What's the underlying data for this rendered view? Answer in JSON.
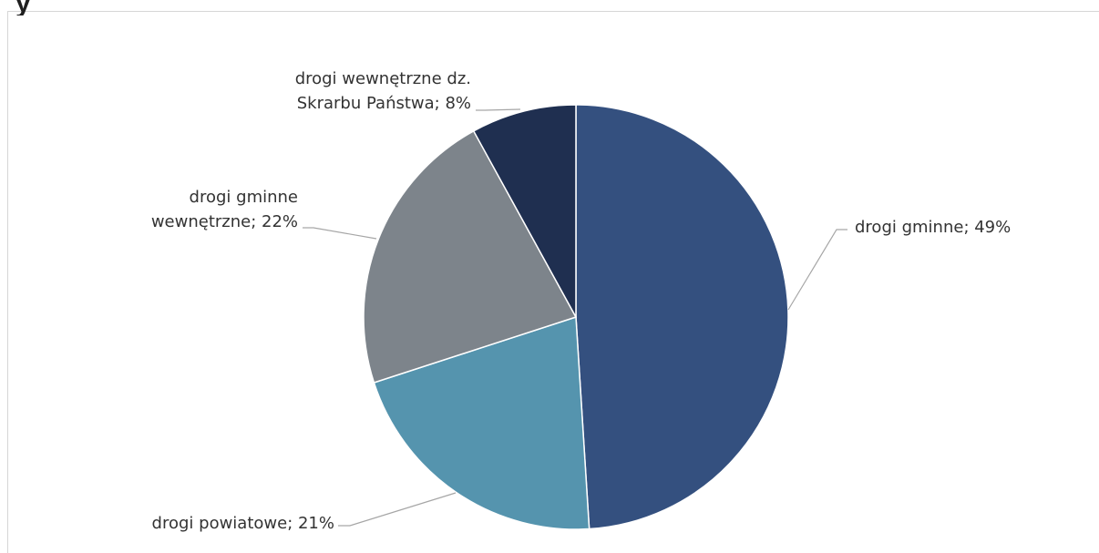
{
  "fragment": "y",
  "chart_data": {
    "type": "pie",
    "title": "",
    "start_angle_deg": 0,
    "direction": "clockwise",
    "slices": [
      {
        "label": "drogi gminne; 49%",
        "value": 49,
        "color": "#34507f"
      },
      {
        "label": "drogi powiatowe; 21%",
        "value": 21,
        "color": "#5594ae"
      },
      {
        "label": "drogi gminne\nwewnętrzne; 22%",
        "value": 22,
        "color": "#7d848b"
      },
      {
        "label": "drogi wewnętrzne dz.\nSkrarbu Państwa; 8%",
        "value": 8,
        "color": "#1f2f50"
      }
    ]
  }
}
